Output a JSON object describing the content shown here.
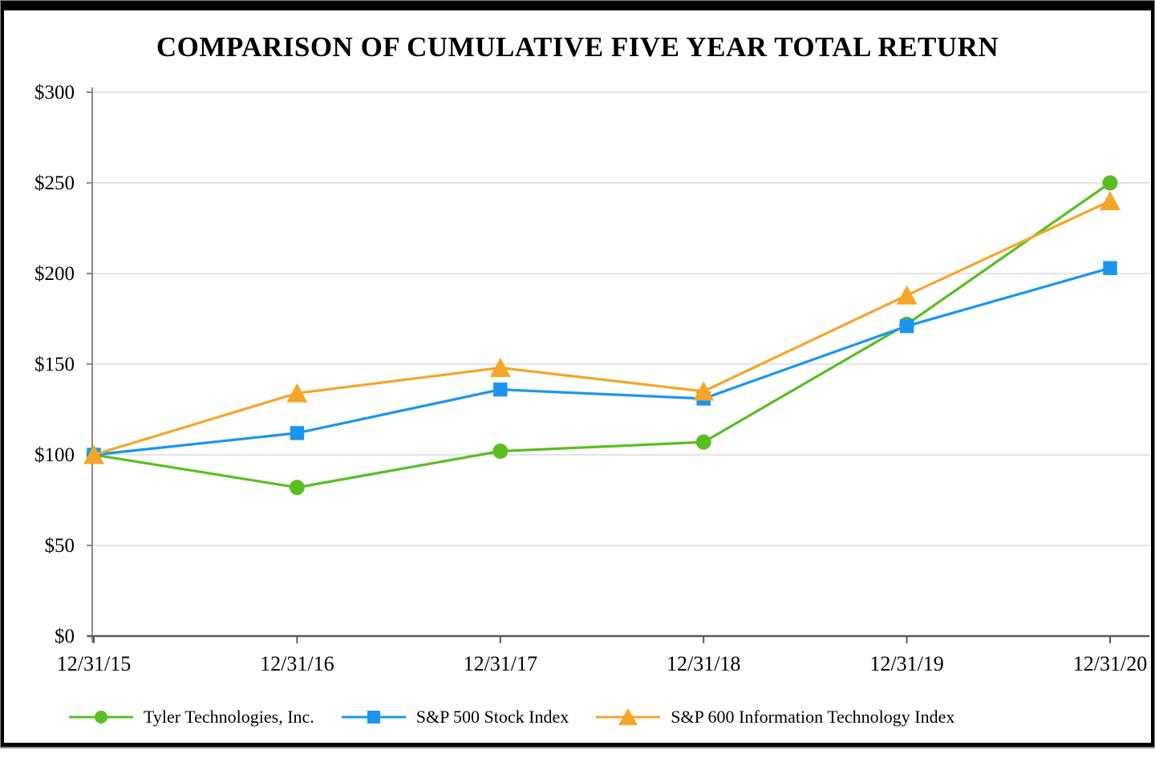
{
  "page": {
    "title": "COMPARISON OF CUMULATIVE FIVE YEAR TOTAL RETURN"
  },
  "chart_data": {
    "type": "line",
    "title": "COMPARISON OF CUMULATIVE FIVE YEAR TOTAL RETURN",
    "categories": [
      "12/31/15",
      "12/31/16",
      "12/31/17",
      "12/31/18",
      "12/31/19",
      "12/31/20"
    ],
    "series": [
      {
        "name": "Tyler Technologies, Inc.",
        "marker": "circle",
        "color": "#5abe23",
        "values": [
          100,
          82,
          102,
          107,
          172,
          250
        ]
      },
      {
        "name": "S&P 500 Stock Index",
        "marker": "square",
        "color": "#1b96ee",
        "values": [
          100,
          112,
          136,
          131,
          171,
          203
        ]
      },
      {
        "name": "S&P 600 Information Technology Index",
        "marker": "triangle",
        "color": "#f5a628",
        "values": [
          100,
          134,
          148,
          135,
          188,
          240
        ]
      }
    ],
    "xlabel": "",
    "ylabel": "",
    "ylim": [
      0,
      300
    ],
    "ytick_step": 50,
    "ytick_labels": [
      "$0",
      "$50",
      "$100",
      "$150",
      "$200",
      "$250",
      "$300"
    ],
    "grid": true,
    "legend_position": "bottom",
    "colors": {
      "gridline": "#dcdcdc",
      "y_axis": "#8a8a8a",
      "x_axis": "#595959",
      "text": "#000000"
    }
  }
}
